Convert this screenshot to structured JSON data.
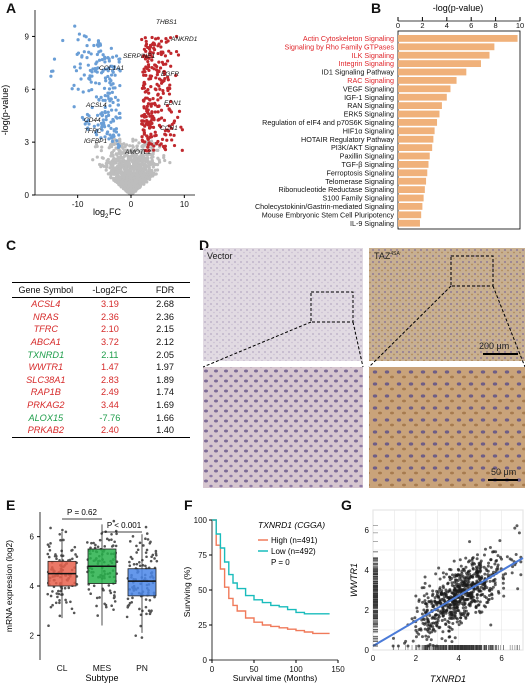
{
  "panel_labels": {
    "a": "A",
    "b": "B",
    "c": "C",
    "d": "D",
    "e": "E",
    "f": "F",
    "g": "G"
  },
  "volcano": {
    "ylabel": "-log(p-value)",
    "xlabel": "log",
    "xlabel_sub": "2",
    "xlabel_tail": "FC",
    "xticks": [
      "-10",
      "0",
      "10"
    ],
    "yticks": [
      "0",
      "3",
      "6",
      "9"
    ],
    "genes": [
      "THBS1",
      "ANKRD1",
      "SERPINE1",
      "COL1A1",
      "EGFR",
      "EDN1",
      "ACSL4",
      "CD44",
      "TFRC",
      "IGFBP1",
      "CCN1",
      "AMOTL2"
    ],
    "colors": {
      "up": "#c0282d",
      "down": "#6a9ed6",
      "ns": "#bdbdbd"
    }
  },
  "chart_data": [
    {
      "type": "bar",
      "title": "-log(p-value)",
      "xlim": [
        0,
        10
      ],
      "xticks": [
        "0",
        "2",
        "4",
        "6",
        "8",
        "10"
      ],
      "categories": [
        "Actin Cytoskeleton Signaling",
        "Signaling by Rho Family GTPases",
        "ILK Signaling",
        "Integrin Signaling",
        "ID1 Signaling Pathway",
        "RAC Signaling",
        "VEGF Signaling",
        "IGF-1 Signaling",
        "RAN Signaling",
        "ERK5 Signaling",
        "Regulation of eIF4 and p70S6K Signaling",
        "HIF1α Signaling",
        "HOTAIR Regulatory Pathway",
        "PI3K/AKT Signaling",
        "Paxillin Signaling",
        "TGF-β Signaling",
        "Ferroptosis Signaling",
        "Telomerase Signaling",
        "Ribonucleotide Reductase Signaling",
        "S100 Family Signaling",
        "Cholecystokinin/Gastrin-mediated Signaling",
        "Mouse Embryonic Stem Cell Pluripotency",
        "IL-9 Signaling"
      ],
      "values": [
        9.8,
        7.9,
        7.5,
        6.8,
        5.6,
        4.8,
        4.3,
        4.0,
        3.6,
        3.4,
        3.2,
        3.0,
        2.9,
        2.8,
        2.6,
        2.5,
        2.4,
        2.3,
        2.2,
        2.1,
        2.0,
        1.9,
        1.8
      ],
      "highlight_red": [
        true,
        true,
        true,
        true,
        false,
        true,
        false,
        false,
        false,
        false,
        false,
        false,
        false,
        false,
        false,
        false,
        false,
        false,
        false,
        false,
        false,
        false,
        false
      ],
      "colors": {
        "bar": "#f0b17a",
        "red": "#e0252a"
      }
    },
    {
      "type": "box",
      "ylabel": "mRNA expression (log2)",
      "xlabel": "Subtype",
      "categories": [
        "CL",
        "MES",
        "PN"
      ],
      "ylim": [
        1,
        7
      ],
      "yticks": [
        "2",
        "4",
        "6"
      ],
      "medians": [
        4.5,
        4.8,
        4.2
      ],
      "q1": [
        4.0,
        4.1,
        3.6
      ],
      "q3": [
        5.0,
        5.5,
        4.7
      ],
      "whisker_low": [
        2.7,
        2.4,
        2.1
      ],
      "whisker_high": [
        6.2,
        6.5,
        6.1
      ],
      "colors": [
        "#e8604c",
        "#28b24b",
        "#4a86e8"
      ],
      "annotations": [
        "P = 0.62",
        "P < 0.001"
      ]
    },
    {
      "type": "line",
      "title": "TXNRD1 (CGGA)",
      "ylabel": "Surviving (%)",
      "xlabel": "Survival time (Months)",
      "xlim": [
        0,
        150
      ],
      "ylim": [
        0,
        100
      ],
      "xticks": [
        "0",
        "50",
        "100",
        "150"
      ],
      "yticks": [
        "0",
        "25",
        "50",
        "75",
        "100"
      ],
      "series": [
        {
          "name": "High (n=491)",
          "color": "#f07a5a",
          "x": [
            0,
            5,
            10,
            15,
            20,
            25,
            30,
            40,
            50,
            60,
            70,
            80,
            90,
            100,
            110,
            120,
            130,
            140
          ],
          "y": [
            100,
            82,
            65,
            52,
            44,
            39,
            35,
            30,
            27,
            25,
            24,
            23,
            22,
            21,
            20,
            19,
            19,
            19
          ]
        },
        {
          "name": "Low (n=492)",
          "color": "#19bcbc",
          "x": [
            0,
            5,
            10,
            15,
            20,
            25,
            30,
            40,
            50,
            60,
            70,
            80,
            90,
            100,
            110,
            120,
            130,
            140
          ],
          "y": [
            100,
            90,
            80,
            70,
            61,
            55,
            51,
            46,
            43,
            41,
            39,
            38,
            36,
            34,
            33,
            33,
            33,
            33
          ]
        }
      ],
      "pvalue": "P = 0"
    },
    {
      "type": "scatter",
      "xlabel": "TXNRD1",
      "ylabel": "WWTR1",
      "xlim": [
        0,
        7
      ],
      "ylim": [
        0,
        7
      ],
      "xticks": [
        "0",
        "2",
        "4",
        "6"
      ],
      "yticks": [
        "0",
        "2",
        "4",
        "6"
      ],
      "fit": {
        "x": [
          0,
          7
        ],
        "y": [
          0.2,
          4.6
        ]
      },
      "colors": {
        "point": "#1a1a1a",
        "fit": "#4b7bd8"
      }
    }
  ],
  "table": {
    "headers": [
      "Gene Symbol",
      "-Log2FC",
      "FDR"
    ],
    "rows": [
      {
        "gene": "ACSL4",
        "fc": "3.19",
        "fdr": "2.68",
        "color": "#d62a2a"
      },
      {
        "gene": "NRAS",
        "fc": "2.36",
        "fdr": "2.36",
        "color": "#d62a2a"
      },
      {
        "gene": "TFRC",
        "fc": "2.10",
        "fdr": "2.15",
        "color": "#d62a2a"
      },
      {
        "gene": "ABCA1",
        "fc": "3.72",
        "fdr": "2.12",
        "color": "#d62a2a"
      },
      {
        "gene": "TXNRD1",
        "fc": "2.11",
        "fdr": "2.05",
        "color": "#1f9e4b"
      },
      {
        "gene": "WWTR1",
        "fc": "1.47",
        "fdr": "1.97",
        "color": "#d62a2a"
      },
      {
        "gene": "SLC38A1",
        "fc": "2.83",
        "fdr": "1.89",
        "color": "#d62a2a"
      },
      {
        "gene": "RAP1B",
        "fc": "2.49",
        "fdr": "1.74",
        "color": "#d62a2a"
      },
      {
        "gene": "PRKAG2",
        "fc": "3.44",
        "fdr": "1.69",
        "color": "#d62a2a"
      },
      {
        "gene": "ALOX15",
        "fc": "-7.76",
        "fdr": "1.66",
        "color": "#1f9e4b"
      },
      {
        "gene": "PRKAB2",
        "fc": "2.40",
        "fdr": "1.40",
        "color": "#d62a2a"
      }
    ]
  },
  "ihc": {
    "vector": "Vector",
    "taz": "TAZ",
    "taz_sup": "4SA",
    "scale1": "200 μm",
    "scale2": "50 μm"
  }
}
